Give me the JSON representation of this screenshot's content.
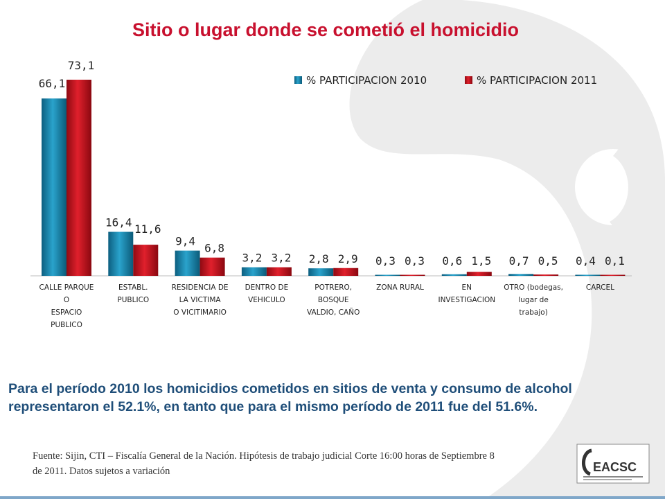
{
  "page": {
    "title": "Sitio o lugar donde se cometió el homicidio",
    "note": "Para el período 2010 los homicidios cometidos en sitios  de venta y consumo de alcohol representaron el 52.1%, en tanto que para el mismo período de 2011 fue del  51.6%.",
    "source_line1": "Fuente: Sijin,  CTI – Fiscalía General de la Nación.  Hipótesis de trabajo judicial  Corte 16:00 horas de  Septiembre 8",
    "source_line2": "de  2011.  Datos sujetos a variación",
    "logo_text": "EACSC"
  },
  "colors": {
    "series_2010": "#1a8ab0",
    "series_2011": "#c8101e",
    "title": "#c8102e",
    "note": "#1f4e79",
    "watermark": "#ececec"
  },
  "chart_data": {
    "type": "bar",
    "categories": [
      [
        "CALLE PARQUE",
        "O",
        "ESPACIO",
        "PUBLICO"
      ],
      [
        "ESTABL.",
        "PUBLICO"
      ],
      [
        "RESIDENCIA DE",
        "LA VICTIMA",
        "O VICITIMARIO"
      ],
      [
        "DENTRO DE",
        "VEHICULO"
      ],
      [
        "POTRERO,",
        "BOSQUE",
        "VALDIO, CAÑO"
      ],
      [
        "ZONA RURAL"
      ],
      [
        "EN",
        "INVESTIGACION"
      ],
      [
        "OTRO (bodegas,",
        "lugar de",
        "trabajo)"
      ],
      [
        "CARCEL"
      ]
    ],
    "series": [
      {
        "name": "% PARTICIPACION 2010",
        "values": [
          66.1,
          16.4,
          9.4,
          3.2,
          2.8,
          0.3,
          0.6,
          0.7,
          0.4
        ],
        "labels": [
          "66,1",
          "16,4",
          "9,4",
          "3,2",
          "2,8",
          "0,3",
          "0,6",
          "0,7",
          "0,4"
        ]
      },
      {
        "name": "% PARTICIPACION 2011",
        "values": [
          73.1,
          11.6,
          6.8,
          3.2,
          2.9,
          0.3,
          1.5,
          0.5,
          0.1
        ],
        "labels": [
          "73,1",
          "11,6",
          "6,8",
          "3,2",
          "2,9",
          "0,3",
          "1,5",
          "0,5",
          "0,1"
        ]
      }
    ],
    "ylim": [
      0,
      73.1
    ],
    "legend": "top-right",
    "grid": false
  }
}
